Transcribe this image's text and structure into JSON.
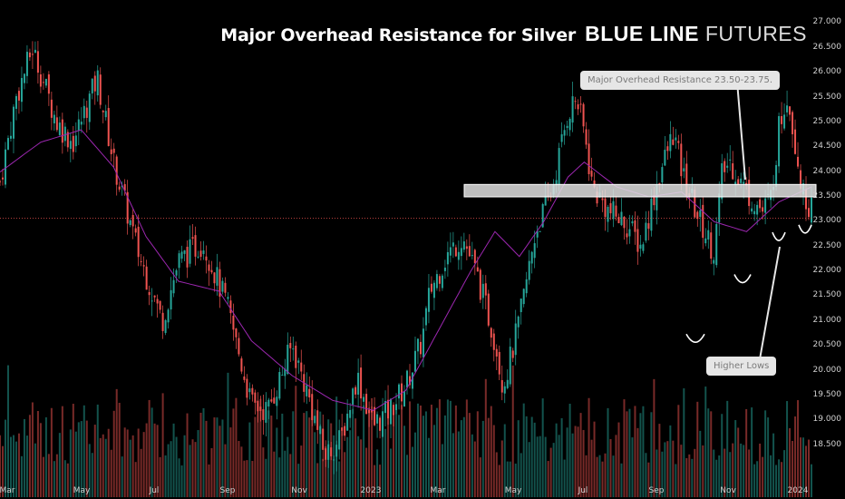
{
  "title": "Major Overhead Resistance for Silver",
  "brand": {
    "bold": "BLUE LINE",
    "light": "FUTURES"
  },
  "annotations": {
    "resistance": "Major Overhead Resistance 23.50-23.75.",
    "higher_lows": "Higher Lows"
  },
  "colors": {
    "up": "#26a69a",
    "down": "#ef5350",
    "ma": "#9c27b0",
    "zone": "#e0e0e0",
    "price_line": "#ef5350",
    "background": "#000000"
  },
  "chart_data": {
    "type": "candlestick",
    "title": "Major Overhead Resistance for Silver",
    "y_ticks": [
      "27.000",
      "26.500",
      "26.000",
      "25.500",
      "25.000",
      "24.500",
      "24.000",
      "23.500",
      "23.000",
      "22.500",
      "22.000",
      "21.500",
      "21.000",
      "20.500",
      "20.000",
      "19.500",
      "19.000",
      "18.500"
    ],
    "ylim": [
      18.2,
      27.1
    ],
    "x_ticks": [
      "Mar",
      "May",
      "Jul",
      "Sep",
      "Nov",
      "2023",
      "Mar",
      "May",
      "Jul",
      "Sep",
      "Nov",
      "2024"
    ],
    "resistance_zone": [
      23.5,
      23.75
    ],
    "current_price_level": 23.07,
    "higher_lows": [
      20.7,
      21.9,
      22.75,
      22.9
    ],
    "price_path": [
      [
        0,
        23.8
      ],
      [
        2,
        25.5
      ],
      [
        4,
        26.5
      ],
      [
        7,
        25.0
      ],
      [
        9,
        24.6
      ],
      [
        12,
        25.9
      ],
      [
        14,
        24.2
      ],
      [
        17,
        22.4
      ],
      [
        20,
        21.0
      ],
      [
        22,
        22.2
      ],
      [
        25,
        22.6
      ],
      [
        28,
        21.3
      ],
      [
        31,
        19.3
      ],
      [
        33,
        19.2
      ],
      [
        36,
        20.5
      ],
      [
        38,
        19.5
      ],
      [
        40,
        18.3
      ],
      [
        42,
        18.6
      ],
      [
        44,
        19.9
      ],
      [
        46,
        18.9
      ],
      [
        48,
        19.2
      ],
      [
        50,
        19.7
      ],
      [
        52,
        20.6
      ],
      [
        53,
        21.6
      ],
      [
        55,
        22.3
      ],
      [
        57,
        22.7
      ],
      [
        59,
        21.8
      ],
      [
        61,
        20.6
      ],
      [
        62,
        19.7
      ],
      [
        63,
        20.3
      ],
      [
        64,
        21.0
      ],
      [
        66,
        22.8
      ],
      [
        68,
        23.6
      ],
      [
        70,
        25.2
      ],
      [
        71,
        25.5
      ],
      [
        72,
        24.8
      ],
      [
        73,
        23.7
      ],
      [
        75,
        23.2
      ],
      [
        77,
        23.0
      ],
      [
        79,
        22.5
      ],
      [
        81,
        23.8
      ],
      [
        83,
        24.8
      ],
      [
        84,
        24.0
      ],
      [
        86,
        23.1
      ],
      [
        88,
        22.4
      ],
      [
        89,
        24.0
      ],
      [
        90,
        24.2
      ],
      [
        92,
        23.6
      ],
      [
        94,
        23.2
      ],
      [
        95,
        23.5
      ],
      [
        96,
        24.9
      ],
      [
        97,
        25.6
      ],
      [
        98,
        24.6
      ],
      [
        99,
        23.5
      ],
      [
        100,
        23.3
      ]
    ],
    "ma_path": [
      [
        0,
        24.0
      ],
      [
        5,
        24.6
      ],
      [
        10,
        24.85
      ],
      [
        14,
        24.1
      ],
      [
        18,
        22.7
      ],
      [
        22,
        21.8
      ],
      [
        27,
        21.6
      ],
      [
        31,
        20.6
      ],
      [
        36,
        19.9
      ],
      [
        41,
        19.4
      ],
      [
        46,
        19.2
      ],
      [
        50,
        19.6
      ],
      [
        54,
        20.8
      ],
      [
        58,
        22.0
      ],
      [
        61,
        22.8
      ],
      [
        64,
        22.3
      ],
      [
        67,
        23.0
      ],
      [
        70,
        23.9
      ],
      [
        72,
        24.2
      ],
      [
        76,
        23.7
      ],
      [
        80,
        23.5
      ],
      [
        84,
        23.6
      ],
      [
        88,
        23.0
      ],
      [
        92,
        22.8
      ],
      [
        96,
        23.4
      ],
      [
        100,
        23.7
      ]
    ]
  }
}
